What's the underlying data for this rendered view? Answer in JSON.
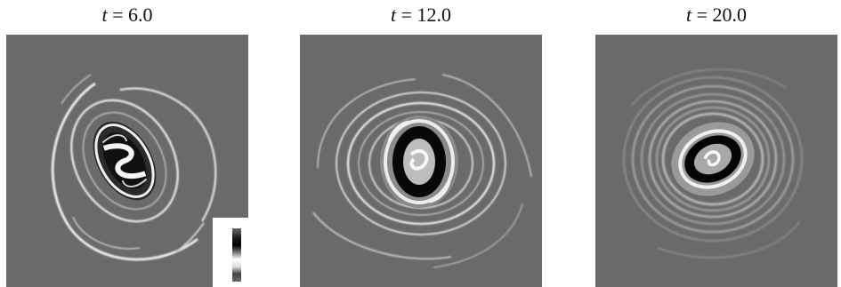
{
  "panels": [
    {
      "label_var": "t",
      "label_eq": " = ",
      "label_val": "6.0"
    },
    {
      "label_var": "t",
      "label_eq": " = ",
      "label_val": "12.0"
    },
    {
      "label_var": "t",
      "label_eq": " = ",
      "label_val": "20.0"
    }
  ],
  "colors": {
    "background_field": "#6a6a6a",
    "light": "#f2f2f2",
    "dark": "#0a0a0a",
    "page": "#ffffff"
  }
}
